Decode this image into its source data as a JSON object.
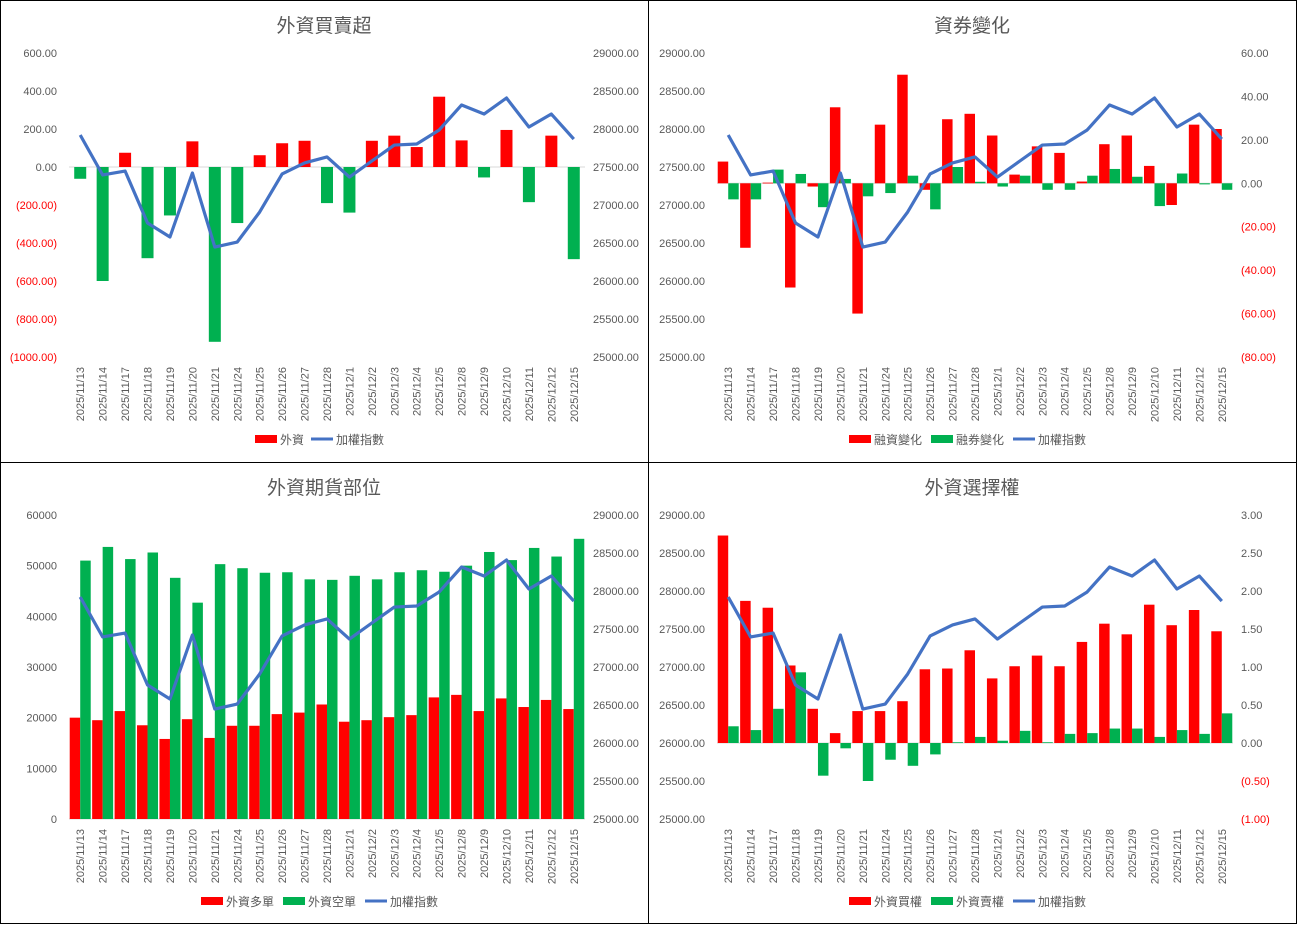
{
  "colors": {
    "red": "#ff0000",
    "green": "#00b050",
    "blue": "#4472c4",
    "axis_text": "#595959",
    "neg_text": "#ff0000",
    "title": "#595959"
  },
  "categories": [
    "2025/11/13",
    "2025/11/14",
    "2025/11/17",
    "2025/11/18",
    "2025/11/19",
    "2025/11/20",
    "2025/11/21",
    "2025/11/24",
    "2025/11/25",
    "2025/11/26",
    "2025/11/27",
    "2025/11/28",
    "2025/12/1",
    "2025/12/2",
    "2025/12/3",
    "2025/12/4",
    "2025/12/5",
    "2025/12/8",
    "2025/12/9",
    "2025/12/10",
    "2025/12/11",
    "2025/12/12",
    "2025/12/15"
  ],
  "chart_data": [
    {
      "type": "bar",
      "title": "外資買賣超",
      "bar_axis": "left",
      "line_axis": "right",
      "left": {
        "ylim": [
          -1000,
          600
        ],
        "ticks": [
          600,
          400,
          200,
          0,
          -200,
          -400,
          -600,
          -800,
          -1000
        ],
        "labels": [
          "600.00",
          "400.00",
          "200.00",
          "0.00",
          "(200.00)",
          "(400.00)",
          "(600.00)",
          "(800.00)",
          "(1000.00)"
        ]
      },
      "right": {
        "ylim": [
          25000,
          29000
        ],
        "ticks": [
          29000,
          28500,
          28000,
          27500,
          27000,
          26500,
          26000,
          25500,
          25000
        ],
        "labels": [
          "29000.00",
          "28500.00",
          "28000.00",
          "27500.00",
          "27000.00",
          "26500.00",
          "26000.00",
          "25500.00",
          "25000.00"
        ]
      },
      "bars": [
        {
          "name": "外資",
          "color": "signed",
          "values": [
            -62,
            -600,
            75,
            -480,
            -255,
            135,
            -920,
            -295,
            62,
            125,
            138,
            -190,
            -240,
            138,
            165,
            105,
            370,
            140,
            -55,
            195,
            -185,
            165,
            -485
          ]
        }
      ],
      "line": {
        "name": "加權指數",
        "values": [
          27921,
          27395,
          27447,
          26763,
          26579,
          27421,
          26447,
          26513,
          26908,
          27408,
          27553,
          27632,
          27368,
          27579,
          27789,
          27803,
          27987,
          28316,
          28197,
          28408,
          28026,
          28197,
          27868
        ]
      }
    },
    {
      "type": "bar",
      "title": "資券變化",
      "bar_axis": "right",
      "line_axis": "left",
      "left": {
        "ylim": [
          25000,
          29000
        ],
        "ticks": [
          29000,
          28500,
          28000,
          27500,
          27000,
          26500,
          26000,
          25500,
          25000
        ],
        "labels": [
          "29000.00",
          "28500.00",
          "28000.00",
          "27500.00",
          "27000.00",
          "26500.00",
          "26000.00",
          "25500.00",
          "25000.00"
        ]
      },
      "right": {
        "ylim": [
          -80,
          60
        ],
        "ticks": [
          60,
          40,
          20,
          0,
          -20,
          -40,
          -60,
          -80
        ],
        "labels": [
          "60.00",
          "40.00",
          "20.00",
          "0.00",
          "(20.00)",
          "(40.00)",
          "(60.00)",
          "(80.00)"
        ]
      },
      "bars": [
        {
          "name": "融資變化",
          "color": "#ff0000",
          "values": [
            10,
            -29.7,
            0.3,
            -48,
            -1.5,
            35,
            -60,
            27,
            50,
            -3,
            29.5,
            32,
            22,
            4,
            17,
            14,
            0.8,
            18,
            22,
            8,
            -10,
            27,
            25
          ]
        },
        {
          "name": "融券變化",
          "color": "#00b050",
          "values": [
            -7.4,
            -7.4,
            6.3,
            4.3,
            -11,
            2,
            -6,
            -4.5,
            3.5,
            -12,
            7.5,
            0.7,
            -1.5,
            3.5,
            -3,
            -3,
            3.5,
            6.6,
            3,
            -10.5,
            4.5,
            -0.5,
            -3
          ]
        }
      ],
      "line": {
        "name": "加權指數",
        "values": [
          27921,
          27395,
          27447,
          26763,
          26579,
          27421,
          26447,
          26513,
          26908,
          27408,
          27553,
          27632,
          27368,
          27579,
          27789,
          27803,
          27987,
          28316,
          28197,
          28408,
          28026,
          28197,
          27868
        ]
      }
    },
    {
      "type": "bar",
      "title": "外資期貨部位",
      "bar_axis": "left",
      "line_axis": "right",
      "left": {
        "ylim": [
          0,
          60000
        ],
        "ticks": [
          60000,
          50000,
          40000,
          30000,
          20000,
          10000,
          0
        ],
        "labels": [
          "60000",
          "50000",
          "40000",
          "30000",
          "20000",
          "10000",
          "0"
        ]
      },
      "right": {
        "ylim": [
          25000,
          29000
        ],
        "ticks": [
          29000,
          28500,
          28000,
          27500,
          27000,
          26500,
          26000,
          25500,
          25000
        ],
        "labels": [
          "29000.00",
          "28500.00",
          "28000.00",
          "27500.00",
          "27000.00",
          "26500.00",
          "26000.00",
          "25500.00",
          "25000.00"
        ]
      },
      "bars": [
        {
          "name": "外資多單",
          "color": "#ff0000",
          "values": [
            20000,
            19500,
            21300,
            18500,
            15800,
            19700,
            16000,
            18400,
            18400,
            20700,
            21000,
            22600,
            19200,
            19500,
            20100,
            20500,
            24000,
            24500,
            21300,
            23800,
            22100,
            23500,
            21700
          ]
        },
        {
          "name": "外資空單",
          "color": "#00b050",
          "values": [
            51000,
            53700,
            51300,
            52600,
            47600,
            42700,
            50300,
            49500,
            48600,
            48700,
            47300,
            47200,
            48000,
            47300,
            48700,
            49100,
            48800,
            50000,
            52700,
            51100,
            53500,
            51800,
            55300
          ]
        }
      ],
      "line": {
        "name": "加權指數",
        "values": [
          27921,
          27395,
          27447,
          26763,
          26579,
          27421,
          26447,
          26513,
          26908,
          27408,
          27553,
          27632,
          27368,
          27579,
          27789,
          27803,
          27987,
          28316,
          28197,
          28408,
          28026,
          28197,
          27868
        ]
      }
    },
    {
      "type": "bar",
      "title": "外資選擇權",
      "bar_axis": "right",
      "line_axis": "left",
      "left": {
        "ylim": [
          25000,
          29000
        ],
        "ticks": [
          29000,
          28500,
          28000,
          27500,
          27000,
          26500,
          26000,
          25500,
          25000
        ],
        "labels": [
          "29000.00",
          "28500.00",
          "28000.00",
          "27500.00",
          "27000.00",
          "26500.00",
          "26000.00",
          "25500.00",
          "25000.00"
        ]
      },
      "right": {
        "ylim": [
          -1,
          3
        ],
        "ticks": [
          3,
          2.5,
          2,
          1.5,
          1,
          0.5,
          0,
          -0.5,
          -1
        ],
        "labels": [
          "3.00",
          "2.50",
          "2.00",
          "1.50",
          "1.00",
          "0.50",
          "0.00",
          "(0.50)",
          "(1.00)"
        ]
      },
      "bars": [
        {
          "name": "外資買權",
          "color": "#ff0000",
          "values": [
            2.73,
            1.87,
            1.78,
            1.02,
            0.45,
            0.13,
            0.42,
            0.42,
            0.55,
            0.97,
            0.98,
            1.22,
            0.85,
            1.01,
            1.15,
            1.01,
            1.33,
            1.57,
            1.43,
            1.82,
            1.55,
            1.75,
            1.47
          ]
        },
        {
          "name": "外資賣權",
          "color": "#00b050",
          "values": [
            0.22,
            0.17,
            0.45,
            0.93,
            -0.43,
            -0.07,
            -0.5,
            -0.22,
            -0.3,
            -0.15,
            0.01,
            0.08,
            0.03,
            0.16,
            0.01,
            0.12,
            0.13,
            0.19,
            0.19,
            0.08,
            0.17,
            0.12,
            0.39
          ]
        }
      ],
      "line": {
        "name": "加權指數",
        "values": [
          27921,
          27395,
          27447,
          26763,
          26579,
          27421,
          26447,
          26513,
          26908,
          27408,
          27553,
          27632,
          27368,
          27579,
          27789,
          27803,
          27987,
          28316,
          28197,
          28408,
          28026,
          28197,
          27868
        ]
      }
    }
  ]
}
